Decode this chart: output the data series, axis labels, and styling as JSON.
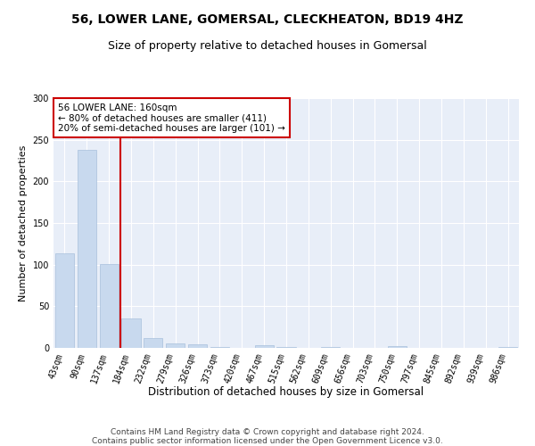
{
  "title": "56, LOWER LANE, GOMERSAL, CLECKHEATON, BD19 4HZ",
  "subtitle": "Size of property relative to detached houses in Gomersal",
  "xlabel": "Distribution of detached houses by size in Gomersal",
  "ylabel": "Number of detached properties",
  "categories": [
    "43sqm",
    "90sqm",
    "137sqm",
    "184sqm",
    "232sqm",
    "279sqm",
    "326sqm",
    "373sqm",
    "420sqm",
    "467sqm",
    "515sqm",
    "562sqm",
    "609sqm",
    "656sqm",
    "703sqm",
    "750sqm",
    "797sqm",
    "845sqm",
    "892sqm",
    "939sqm",
    "986sqm"
  ],
  "values": [
    114,
    238,
    101,
    35,
    12,
    5,
    4,
    1,
    0,
    3,
    1,
    0,
    1,
    0,
    0,
    2,
    0,
    0,
    0,
    0,
    1
  ],
  "bar_color": "#c8d9ee",
  "bar_edge_color": "#a8c0dc",
  "marker_line_color": "#cc0000",
  "marker_label": "56 LOWER LANE: 160sqm",
  "annotation_line1": "← 80% of detached houses are smaller (411)",
  "annotation_line2": "20% of semi-detached houses are larger (101) →",
  "annotation_box_color": "white",
  "annotation_box_edge": "#cc0000",
  "ylim": [
    0,
    300
  ],
  "yticks": [
    0,
    50,
    100,
    150,
    200,
    250,
    300
  ],
  "background_color": "#e8eef8",
  "grid_color": "white",
  "footer_line1": "Contains HM Land Registry data © Crown copyright and database right 2024.",
  "footer_line2": "Contains public sector information licensed under the Open Government Licence v3.0.",
  "title_fontsize": 10,
  "subtitle_fontsize": 9,
  "xlabel_fontsize": 8.5,
  "ylabel_fontsize": 8,
  "tick_fontsize": 7,
  "footer_fontsize": 6.5,
  "annot_fontsize": 7.5
}
